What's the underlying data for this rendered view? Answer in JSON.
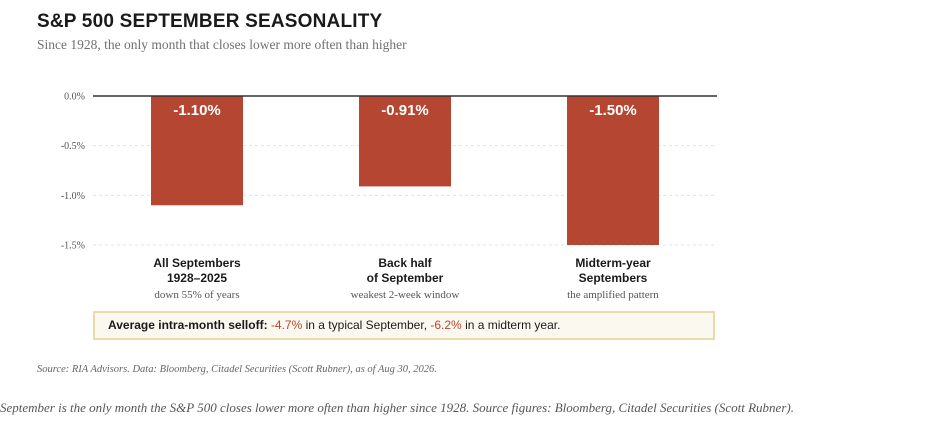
{
  "chart_data": {
    "type": "bar",
    "title": "S&P 500 SEPTEMBER SEASONALITY",
    "subtitle": "Since 1928, the only month that closes lower more often than higher",
    "categories": [
      {
        "label": "All Septembers\n1928–2025",
        "sublabel": "down 55% of years"
      },
      {
        "label": "Back half\nof September",
        "sublabel": "weakest 2-week window"
      },
      {
        "label": "Midterm-year\nSeptembers",
        "sublabel": "the amplified pattern"
      }
    ],
    "values": [
      -1.1,
      -0.91,
      -1.5
    ],
    "value_labels": [
      "-1.10%",
      "-0.91%",
      "-1.50%"
    ],
    "yticks": [
      0.0,
      -0.5,
      -1.0,
      -1.5
    ],
    "ytick_labels": [
      "0.0%",
      "-0.5%",
      "-1.0%",
      "-1.5%"
    ],
    "ylim": [
      -1.5,
      0.0
    ],
    "grid": true,
    "bar_color": "#b54632",
    "callout": {
      "lead": "Average intra-month selloff:",
      "value1": "-4.7%",
      "mid": "in a typical September,",
      "value2": "-6.2%",
      "tail": "in a midterm year."
    },
    "source": "Source: RIA Advisors. Data: Bloomberg, Citadel Securities (Scott Rubner), as of Aug 30, 2026."
  },
  "caption": "September is the only month the S&P 500 closes lower more often than higher since 1928. Source figures: Bloomberg, Citadel Securities (Scott Rubner)."
}
